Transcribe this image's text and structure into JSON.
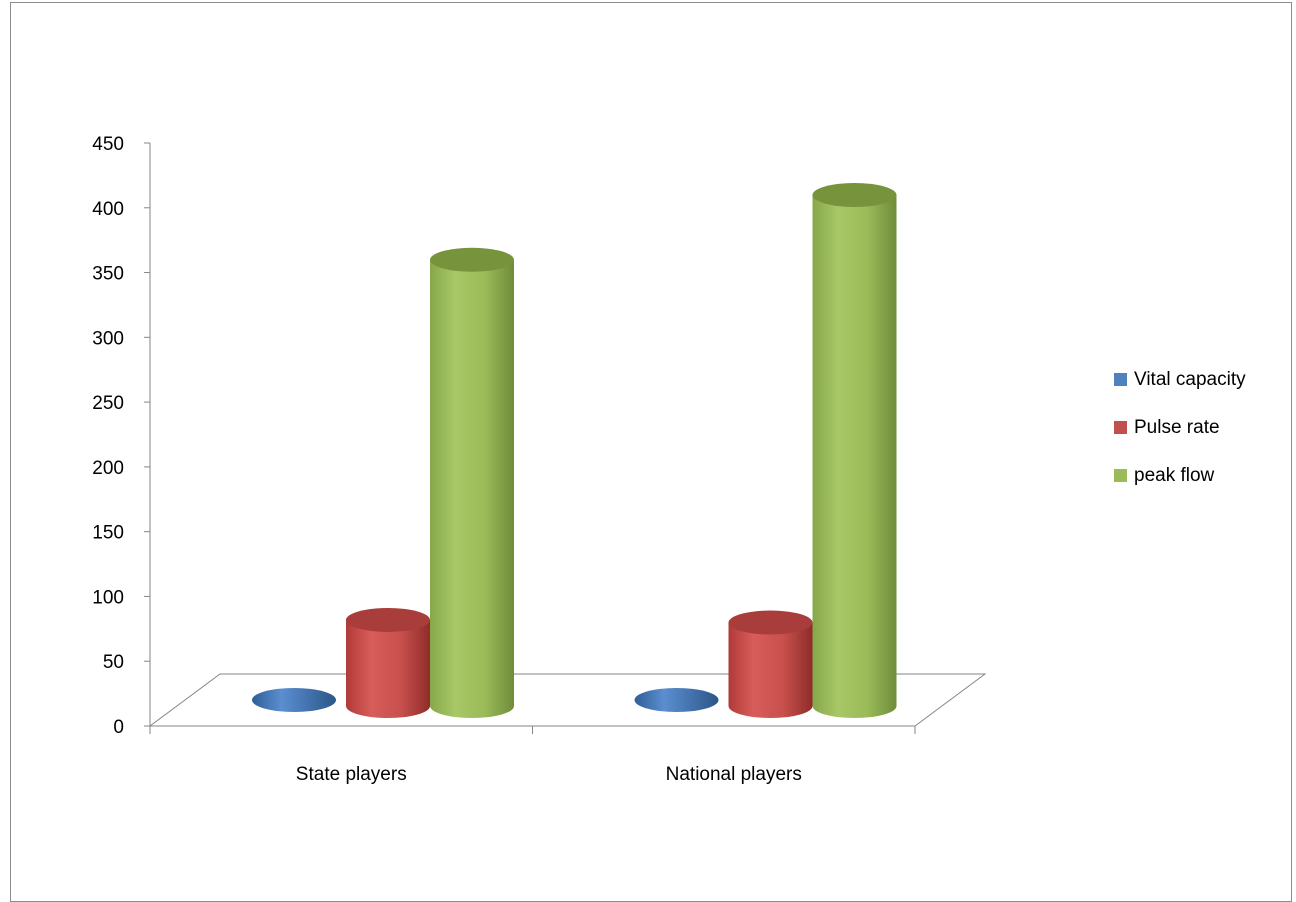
{
  "chart_data": {
    "type": "bar",
    "style": "3d-cylinder",
    "categories": [
      "State players",
      "National players"
    ],
    "series": [
      {
        "name": "Vital capacity",
        "color": "#4f81bd",
        "values": [
          3.5,
          3.6
        ]
      },
      {
        "name": "Pulse rate",
        "color": "#c0504d",
        "values": [
          78,
          76
        ]
      },
      {
        "name": "peak flow",
        "color": "#9bbb59",
        "values": [
          356,
          406
        ]
      }
    ],
    "ylim": [
      0,
      450
    ],
    "yticks": [
      "0",
      "50",
      "100",
      "150",
      "200",
      "250",
      "300",
      "350",
      "400",
      "450"
    ],
    "legend_position": "right",
    "grid": false
  }
}
